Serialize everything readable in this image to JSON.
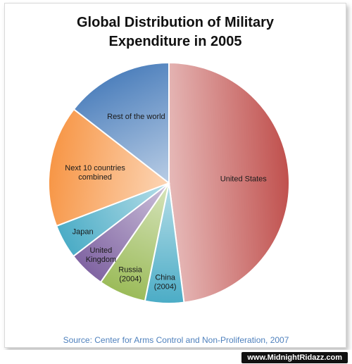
{
  "chart_data": {
    "type": "pie",
    "title_lines": [
      "Global Distribution of Military",
      "Expenditure in 2005"
    ],
    "source": "Source: Center for Arms Control and Non-Proliferation, 2007",
    "slices": [
      {
        "label_lines": [
          "United States"
        ],
        "value": 48,
        "color": "#c0504d"
      },
      {
        "label_lines": [
          "China",
          "(2004)"
        ],
        "value": 5.2,
        "color": "#4bacc6"
      },
      {
        "label_lines": [
          "Russia",
          "(2004)"
        ],
        "value": 6.4,
        "color": "#9bbb59"
      },
      {
        "label_lines": [
          "United",
          "Kingdom"
        ],
        "value": 5.0,
        "color": "#8064a2"
      },
      {
        "label_lines": [
          "Japan"
        ],
        "value": 4.6,
        "color": "#4bacc6"
      },
      {
        "label_lines": [
          "Next 10 countries",
          "combined"
        ],
        "value": 16.3,
        "color": "#f79646"
      },
      {
        "label_lines": [
          "Rest of the world"
        ],
        "value": 14.5,
        "color": "#4f81bd"
      }
    ]
  },
  "watermark": "www.MidnightRidazz.com"
}
